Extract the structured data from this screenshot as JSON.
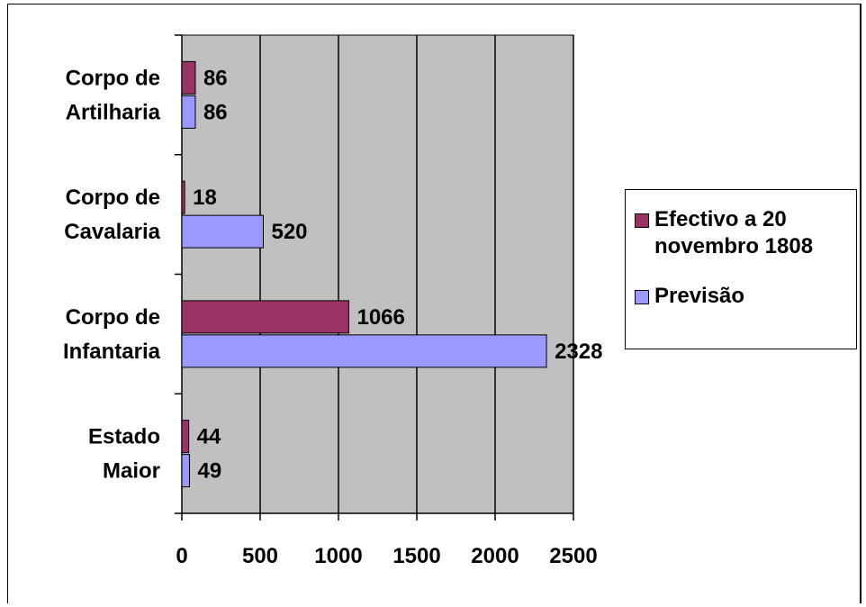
{
  "chart_data": {
    "type": "bar",
    "orientation": "horizontal",
    "categories": [
      "Corpo de\nArtilharia",
      "Corpo de\nCavalaria",
      "Corpo de\nInfantaria",
      "Estado\nMaior"
    ],
    "series": [
      {
        "name": "Efectivo a 20\nnovembro 1808",
        "values": [
          86,
          18,
          1066,
          44
        ],
        "color": "#993366"
      },
      {
        "name": "Previsão",
        "values": [
          86,
          520,
          2328,
          49
        ],
        "color": "#9999FF"
      }
    ],
    "xlim": [
      0,
      2500
    ],
    "xticks": [
      "0",
      "500",
      "1000",
      "1500",
      "2000",
      "2500"
    ],
    "grid": true,
    "plot_background": "#C0C0C0",
    "legend_position": "right",
    "data_labels": true
  }
}
